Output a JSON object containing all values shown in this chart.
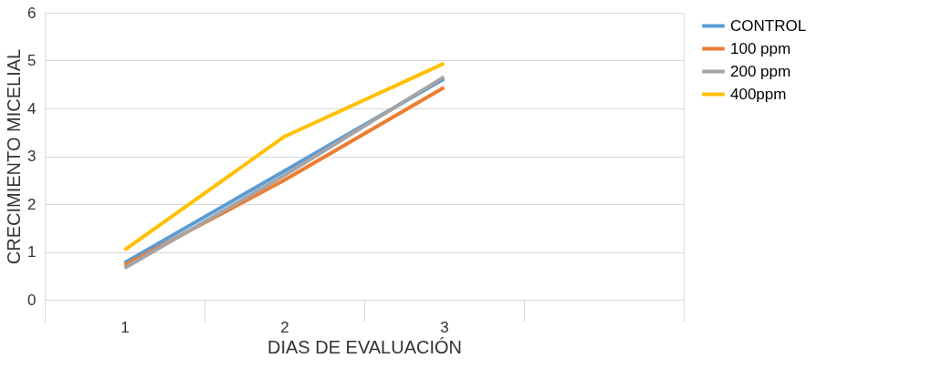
{
  "chart_data": {
    "type": "line",
    "xlabel": "DIAS DE EVALUACIÓN",
    "ylabel": "CRECIMIENTO MICELIAL",
    "categories": [
      "1",
      "2",
      "3",
      null
    ],
    "series": [
      {
        "name": "CONTROL",
        "color": "#5b9bd5",
        "values": [
          0.77,
          2.69,
          4.62,
          null
        ]
      },
      {
        "name": "100 ppm",
        "color": "#ed7d31",
        "values": [
          0.72,
          2.5,
          4.44,
          null
        ]
      },
      {
        "name": "200 ppm",
        "color": "#a5a5a5",
        "values": [
          0.66,
          2.6,
          4.66,
          null
        ]
      },
      {
        "name": "400ppm",
        "color": "#ffc000",
        "values": [
          1.04,
          3.41,
          4.94,
          null
        ]
      }
    ],
    "ylim": [
      0,
      6
    ],
    "yticks": [
      0,
      1,
      2,
      3,
      4,
      5,
      6
    ],
    "grid": "y",
    "legend": "right",
    "marker": "none",
    "line_style": "solid"
  }
}
